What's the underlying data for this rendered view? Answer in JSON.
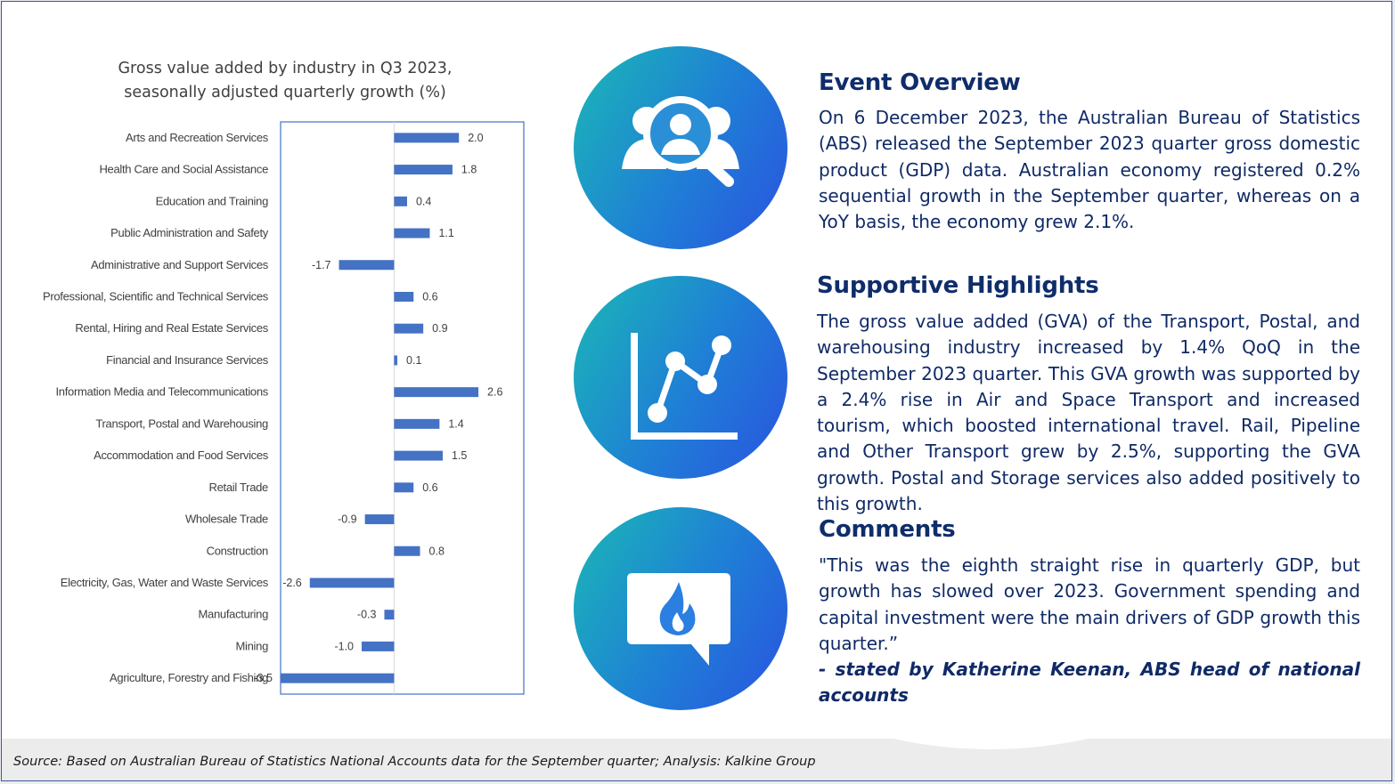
{
  "chart_data": {
    "type": "bar",
    "orientation": "horizontal",
    "title": "Gross value added by industry in Q3 2023,\nseasonally adjusted quarterly growth (%)",
    "categories": [
      "Arts and Recreation Services",
      "Health Care and Social Assistance",
      "Education and Training",
      "Public Administration and Safety",
      "Administrative and Support Services",
      "Professional, Scientific and Technical Services",
      "Rental, Hiring and Real Estate Services",
      "Financial and Insurance Services",
      "Information Media and Telecommunications",
      "Transport, Postal and Warehousing",
      "Accommodation and Food Services",
      "Retail Trade",
      "Wholesale Trade",
      "Construction",
      "Electricity, Gas, Water and Waste Services",
      "Manufacturing",
      "Mining",
      "Agriculture, Forestry and Fishing"
    ],
    "values": [
      2.0,
      1.8,
      0.4,
      1.1,
      -1.7,
      0.6,
      0.9,
      0.1,
      2.6,
      1.4,
      1.5,
      0.6,
      -0.9,
      0.8,
      -2.6,
      -0.3,
      -1.0,
      -3.5
    ],
    "value_labels": [
      "2.0",
      "1.8",
      "0.4",
      "1.1",
      "-1.7",
      "0.6",
      "0.9",
      "0.1",
      "2.6",
      "1.4",
      "1.5",
      "0.6",
      "-0.9",
      "0.8",
      "-2.6",
      "-0.3",
      "-1.0",
      "-3.5"
    ],
    "xlim": [
      -3.5,
      4.0
    ],
    "grid": false,
    "legend": "none",
    "bar_color": "#4472c4",
    "axis_border_color": "#4472c4"
  },
  "icons": {
    "event": "people-search-icon",
    "highlights": "line-chart-icon",
    "comments": "chat-fire-icon"
  },
  "event_overview": {
    "title": "Event Overview",
    "body": "On 6 December 2023, the Australian Bureau of Statistics (ABS) released the September 2023 quarter gross domestic product (GDP) data. Australian economy registered 0.2% sequential growth in the September quarter, whereas on a YoY basis, the economy grew 2.1%."
  },
  "highlights": {
    "title": "Supportive Highlights",
    "body": "The gross value added (GVA) of the Transport, Postal, and warehousing industry increased by 1.4% QoQ in the September 2023 quarter. This GVA growth was supported by a 2.4% rise in Air and Space Transport and increased tourism, which boosted international travel. Rail, Pipeline and Other Transport grew by 2.5%, supporting the GVA growth. Postal and Storage services also added positively to this growth."
  },
  "comments": {
    "title": "Comments",
    "quote": "\"This was the eighth straight rise in quarterly GDP, but growth has slowed over 2023. Government spending and capital investment were the main drivers of GDP growth this quarter.”",
    "attribution": " - stated by Katherine Keenan, ABS head of national accounts"
  },
  "footer": {
    "source": "Source: Based on Australian Bureau of Statistics National Accounts data for the September quarter; Analysis: Kalkine Group"
  },
  "colors": {
    "accent_dark": "#0f2d6b",
    "circle_gradient": [
      "#1ab8b6",
      "#1f7ed6",
      "#2a53e0"
    ]
  }
}
